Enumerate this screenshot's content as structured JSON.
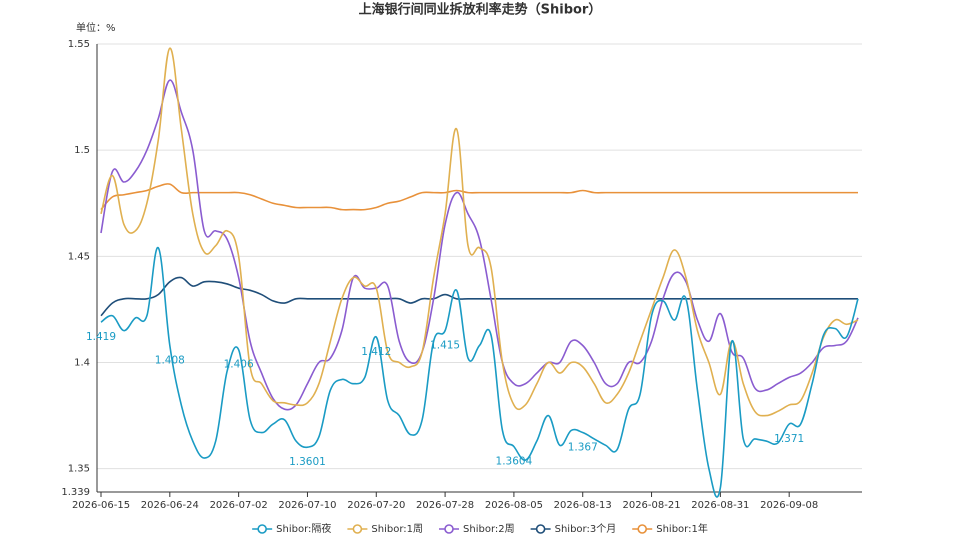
{
  "chart_data": {
    "type": "line",
    "title": "上海银行间同业拆放利率走势（Shibor）",
    "y_axis_label": "单位：%",
    "ylim": [
      1.339,
      1.55
    ],
    "yticks": [
      1.339,
      1.35,
      1.4,
      1.45,
      1.5,
      1.55
    ],
    "grid": true,
    "legend": "bottom",
    "categories": [
      "2026-06-15",
      null,
      null,
      null,
      null,
      null,
      "2026-06-24",
      null,
      null,
      null,
      null,
      null,
      "2026-07-02",
      null,
      null,
      null,
      null,
      null,
      "2026-07-10",
      null,
      null,
      null,
      null,
      null,
      "2026-07-20",
      null,
      null,
      null,
      null,
      null,
      "2026-07-28",
      null,
      null,
      null,
      null,
      null,
      "2026-08-05",
      null,
      null,
      null,
      null,
      null,
      "2026-08-13",
      null,
      null,
      null,
      null,
      null,
      "2026-08-21",
      null,
      null,
      null,
      null,
      null,
      "2026-08-31",
      null,
      null,
      null,
      null,
      null,
      "2026-09-08",
      null,
      null,
      null,
      null,
      null,
      null
    ],
    "series": [
      {
        "name": "Shibor:隔夜",
        "color": "#1a9bc4",
        "values": [
          1.419,
          1.422,
          1.415,
          1.421,
          1.422,
          1.454,
          1.408,
          1.38,
          1.363,
          1.355,
          1.363,
          1.396,
          1.406,
          1.373,
          1.367,
          1.371,
          1.373,
          1.363,
          1.3601,
          1.365,
          1.387,
          1.392,
          1.39,
          1.393,
          1.412,
          1.382,
          1.375,
          1.366,
          1.373,
          1.41,
          1.415,
          1.434,
          1.402,
          1.408,
          1.413,
          1.368,
          1.3604,
          1.354,
          1.363,
          1.375,
          1.361,
          1.368,
          1.367,
          1.364,
          1.361,
          1.359,
          1.378,
          1.385,
          1.422,
          1.429,
          1.42,
          1.43,
          1.387,
          1.35,
          1.341,
          1.41,
          1.364,
          1.364,
          1.363,
          1.362,
          1.371,
          1.371,
          1.39,
          1.413,
          1.416,
          1.412,
          1.43
        ],
        "value_labels": [
          "1.419",
          null,
          null,
          null,
          null,
          null,
          "1.408",
          null,
          null,
          null,
          null,
          null,
          "1.406",
          null,
          null,
          null,
          null,
          null,
          "1.3601",
          null,
          null,
          null,
          null,
          null,
          "1.412",
          null,
          null,
          null,
          null,
          null,
          "1.415",
          null,
          null,
          null,
          null,
          null,
          "1.3604",
          null,
          null,
          null,
          null,
          null,
          "1.367",
          null,
          null,
          null,
          null,
          null,
          null,
          null,
          null,
          null,
          null,
          null,
          null,
          null,
          null,
          null,
          null,
          null,
          "1.371",
          null,
          null,
          null,
          null,
          null,
          null
        ]
      },
      {
        "name": "Shibor:1周",
        "color": "#e0b050",
        "values": [
          1.47,
          1.488,
          1.465,
          1.462,
          1.475,
          1.505,
          1.548,
          1.51,
          1.47,
          1.452,
          1.455,
          1.462,
          1.45,
          1.398,
          1.39,
          1.382,
          1.381,
          1.38,
          1.381,
          1.39,
          1.41,
          1.43,
          1.44,
          1.436,
          1.435,
          1.405,
          1.4,
          1.398,
          1.405,
          1.44,
          1.47,
          1.51,
          1.455,
          1.454,
          1.445,
          1.4,
          1.38,
          1.38,
          1.39,
          1.4,
          1.395,
          1.4,
          1.398,
          1.39,
          1.381,
          1.385,
          1.395,
          1.41,
          1.425,
          1.44,
          1.453,
          1.44,
          1.415,
          1.4,
          1.385,
          1.41,
          1.39,
          1.377,
          1.375,
          1.377,
          1.38,
          1.382,
          1.395,
          1.412,
          1.42,
          1.418,
          1.42
        ]
      },
      {
        "name": "Shibor:2周",
        "color": "#8a5cd0",
        "values": [
          1.461,
          1.49,
          1.485,
          1.49,
          1.5,
          1.515,
          1.533,
          1.518,
          1.5,
          1.462,
          1.462,
          1.458,
          1.44,
          1.41,
          1.395,
          1.383,
          1.378,
          1.38,
          1.39,
          1.4,
          1.402,
          1.415,
          1.44,
          1.435,
          1.435,
          1.436,
          1.41,
          1.4,
          1.405,
          1.43,
          1.465,
          1.48,
          1.47,
          1.458,
          1.43,
          1.4,
          1.39,
          1.39,
          1.395,
          1.4,
          1.4,
          1.41,
          1.408,
          1.4,
          1.39,
          1.39,
          1.4,
          1.4,
          1.41,
          1.43,
          1.442,
          1.438,
          1.42,
          1.41,
          1.423,
          1.405,
          1.402,
          1.388,
          1.387,
          1.39,
          1.393,
          1.395,
          1.4,
          1.407,
          1.408,
          1.41,
          1.421
        ]
      },
      {
        "name": "Shibor:3个月",
        "color": "#1f4e79",
        "values": [
          1.422,
          1.428,
          1.43,
          1.43,
          1.43,
          1.432,
          1.438,
          1.44,
          1.436,
          1.438,
          1.438,
          1.437,
          1.435,
          1.434,
          1.432,
          1.429,
          1.428,
          1.43,
          1.43,
          1.43,
          1.43,
          1.43,
          1.43,
          1.43,
          1.43,
          1.43,
          1.43,
          1.428,
          1.43,
          1.43,
          1.432,
          1.43,
          1.43,
          1.43,
          1.43,
          1.43,
          1.43,
          1.43,
          1.43,
          1.43,
          1.43,
          1.43,
          1.43,
          1.43,
          1.43,
          1.43,
          1.43,
          1.43,
          1.43,
          1.43,
          1.43,
          1.43,
          1.43,
          1.43,
          1.43,
          1.43,
          1.43,
          1.43,
          1.43,
          1.43,
          1.43,
          1.43,
          1.43,
          1.43,
          1.43,
          1.43,
          1.43
        ]
      },
      {
        "name": "Shibor:1年",
        "color": "#e8913a",
        "values": [
          1.472,
          1.478,
          1.479,
          1.48,
          1.481,
          1.483,
          1.484,
          1.48,
          1.48,
          1.48,
          1.48,
          1.48,
          1.48,
          1.479,
          1.477,
          1.475,
          1.474,
          1.473,
          1.473,
          1.473,
          1.473,
          1.472,
          1.472,
          1.472,
          1.473,
          1.475,
          1.476,
          1.478,
          1.48,
          1.48,
          1.48,
          1.481,
          1.48,
          1.48,
          1.48,
          1.48,
          1.48,
          1.48,
          1.48,
          1.48,
          1.48,
          1.48,
          1.481,
          1.48,
          1.48,
          1.48,
          1.48,
          1.48,
          1.48,
          1.48,
          1.48,
          1.48,
          1.48,
          1.48,
          1.48,
          1.48,
          1.48,
          1.48,
          1.48,
          1.48,
          1.48,
          1.48,
          1.48,
          1.48,
          1.48,
          1.48,
          1.48
        ]
      }
    ]
  }
}
